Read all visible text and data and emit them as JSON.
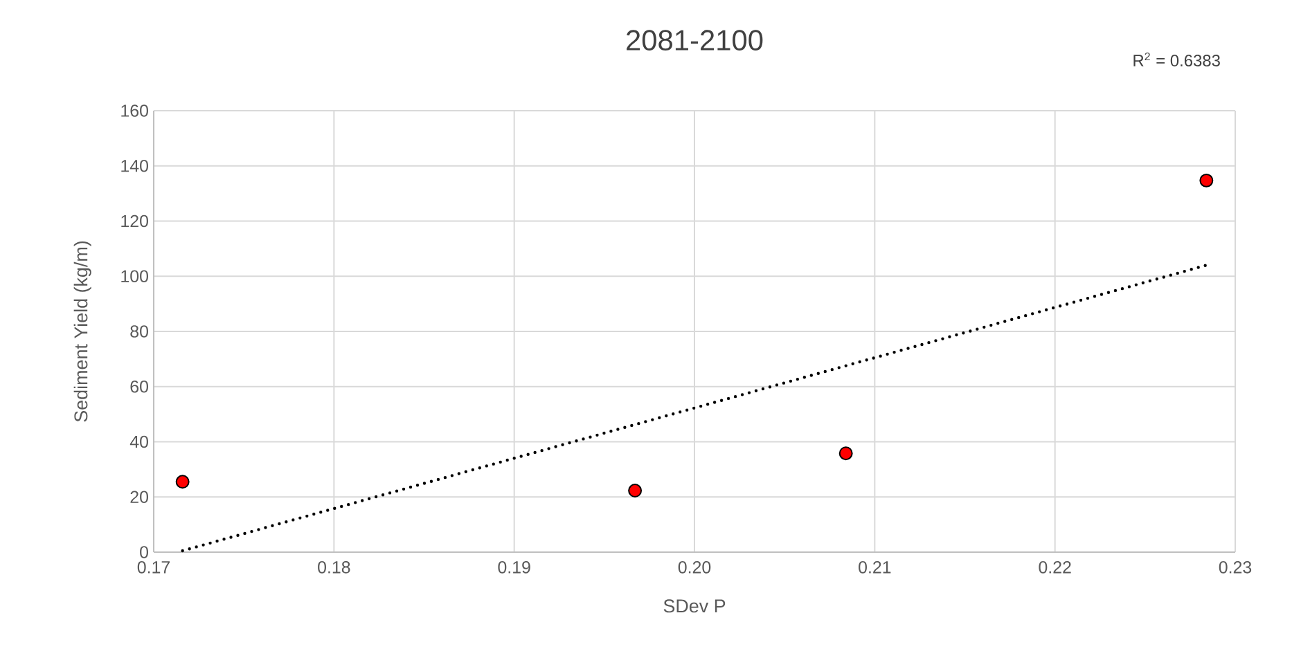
{
  "chart_data": {
    "type": "scatter",
    "title": "2081-2100",
    "xlabel": "SDev P",
    "ylabel": "Sediment Yield (kg/m)",
    "annotations": [
      "R$^{2}$ = 0.6383"
    ],
    "series": [
      {
        "color": "#ff0000",
        "marker": "circle",
        "x": [
          0.1716,
          0.1967,
          0.2084,
          0.2284
        ],
        "values": [
          25.5,
          22.3,
          35.8,
          134.7
        ]
      },
      {
        "type": "line",
        "color": "#000000",
        "line_style": "dotted",
        "marker": "none",
        "x": [
          0.1716,
          0.2284
        ],
        "values": [
          0.5,
          104
        ]
      }
    ],
    "xlim": [
      0.17,
      0.23
    ],
    "xticks": [
      {
        "value": 0.17,
        "label": "0.17"
      },
      {
        "value": 0.18,
        "label": "0.18"
      },
      {
        "value": 0.19,
        "label": "0.19"
      },
      {
        "value": 0.2,
        "label": "0.20"
      },
      {
        "value": 0.21,
        "label": "0.21"
      },
      {
        "value": 0.22,
        "label": "0.22"
      },
      {
        "value": 0.23,
        "label": "0.23"
      }
    ],
    "ylim": [
      0,
      160
    ],
    "yticks": [
      0,
      20,
      40,
      60,
      80,
      100,
      120,
      140,
      160
    ],
    "grid": true
  }
}
